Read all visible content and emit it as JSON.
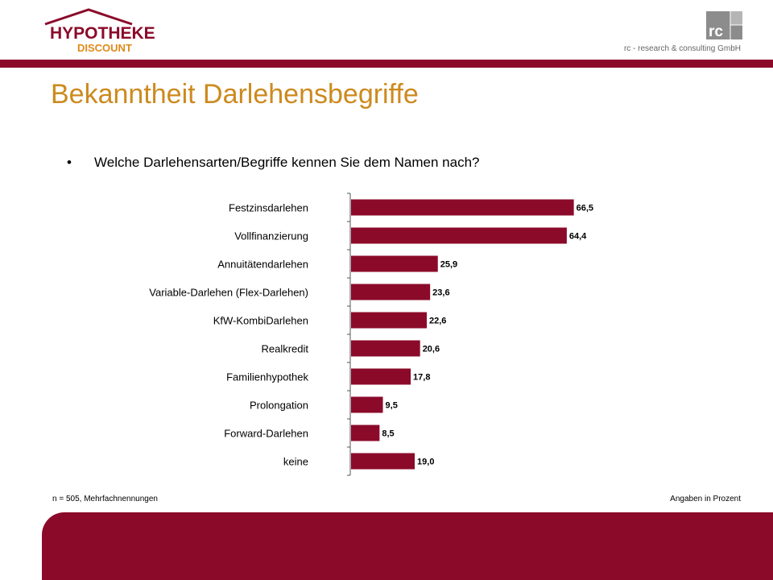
{
  "header": {
    "logo_line1": "HYPOTHEKEN",
    "logo_line2": "DISCOUNT",
    "rc_logo_text": "rc",
    "company": "rc - research & consulting GmbH"
  },
  "colors": {
    "brand": "#8b0a2a",
    "title": "#cc8a1e",
    "logo_orange": "#e08a1a"
  },
  "title": "Bekanntheit Darlehensbegriffe",
  "question": {
    "bullet": "•",
    "text": "Welche Darlehensarten/Begriffe kennen Sie dem Namen nach?"
  },
  "chart_data": {
    "type": "bar",
    "orientation": "horizontal",
    "categories": [
      "Festzinsdarlehen",
      "Vollfinanzierung",
      "Annuitätendarlehen",
      "Variable-Darlehen (Flex-Darlehen)",
      "KfW-KombiDarlehen",
      "Realkredit",
      "Familienhypothek",
      "Prolongation",
      "Forward-Darlehen",
      "keine"
    ],
    "values": [
      66.5,
      64.4,
      25.9,
      23.6,
      22.6,
      20.6,
      17.8,
      9.5,
      8.5,
      19.0
    ],
    "value_labels": [
      "66,5",
      "64,4",
      "25,9",
      "23,6",
      "22,6",
      "20,6",
      "17,8",
      "9,5",
      "8,5",
      "19,0"
    ],
    "xlim": [
      0,
      100
    ],
    "bar_color": "#8b0a2a",
    "grid": false
  },
  "footnote_left": "n = 505, Mehrfachnennungen",
  "footnote_right": "Angaben in Prozent"
}
